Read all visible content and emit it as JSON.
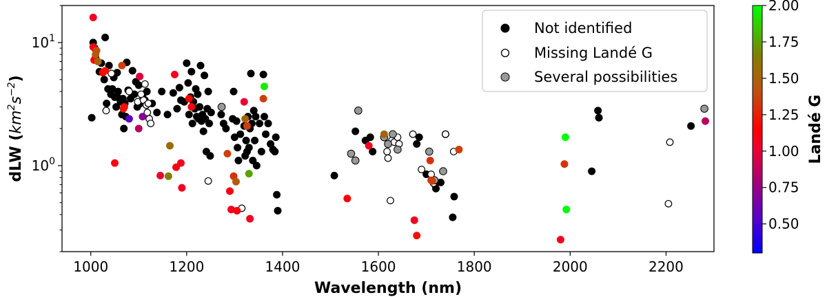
{
  "chart_data": {
    "type": "scatter",
    "title": "",
    "xlabel": "Wavelength (nm)",
    "ylabel": "dLW (km²s⁻²)",
    "ylabel_parts": {
      "main": "dLW (",
      "km": "km",
      "exp2": "2",
      "s": "s",
      "expm2": "−2",
      "close": ")"
    },
    "xscale": "linear",
    "yscale": "log",
    "xlim": [
      940,
      2300
    ],
    "ylim": [
      0.2,
      20
    ],
    "x_ticks": [
      1000,
      1200,
      1400,
      1600,
      1800,
      2000,
      2200
    ],
    "x_tick_labels": [
      "1000",
      "1200",
      "1400",
      "1600",
      "1800",
      "2000",
      "2200"
    ],
    "y_ticks": [
      1,
      10
    ],
    "y_tick_labels": [
      {
        "base": "10",
        "exp": "0"
      },
      {
        "base": "10",
        "exp": "1"
      }
    ],
    "legend": {
      "placement": "top-right",
      "entries": [
        {
          "label": "Not identified",
          "marker": "filled-black"
        },
        {
          "label": "Missing Landé G",
          "marker": "hollow"
        },
        {
          "label": "Several possibilities",
          "marker": "filled-gray"
        }
      ]
    },
    "colorbar": {
      "label": "Landé G",
      "range": [
        0.3,
        2.0
      ],
      "ticks": [
        0.5,
        0.75,
        1.0,
        1.25,
        1.5,
        1.75,
        2.0
      ],
      "tick_labels": [
        "0.50",
        "0.75",
        "1.00",
        "1.25",
        "1.50",
        "1.75",
        "2.00"
      ]
    },
    "series": [
      {
        "name": "Not identified",
        "style": "black",
        "points": [
          [
            1002,
            2.45
          ],
          [
            1005,
            10.0
          ],
          [
            1008,
            9.0
          ],
          [
            1010,
            7.5
          ],
          [
            1018,
            5.8
          ],
          [
            1022,
            6.8
          ],
          [
            1028,
            5.0
          ],
          [
            1030,
            11.0
          ],
          [
            1033,
            3.2
          ],
          [
            1036,
            4.2
          ],
          [
            1038,
            6.5
          ],
          [
            1042,
            3.8
          ],
          [
            1045,
            4.2
          ],
          [
            1048,
            5.2
          ],
          [
            1050,
            3.6
          ],
          [
            1053,
            3.0
          ],
          [
            1055,
            5.7
          ],
          [
            1057,
            4.0
          ],
          [
            1060,
            3.5
          ],
          [
            1062,
            3.3
          ],
          [
            1065,
            2.6
          ],
          [
            1067,
            3.5
          ],
          [
            1069,
            2.0
          ],
          [
            1071,
            3.2
          ],
          [
            1073,
            2.5
          ],
          [
            1075,
            6.9
          ],
          [
            1078,
            4.1
          ],
          [
            1083,
            3.5
          ],
          [
            1087,
            5.9
          ],
          [
            1091,
            3.8
          ],
          [
            1094,
            4.8
          ],
          [
            1097,
            3.0
          ],
          [
            1100,
            4.5
          ],
          [
            1103,
            3.2
          ],
          [
            1108,
            3.7
          ],
          [
            1113,
            3.4
          ],
          [
            1117,
            4.0
          ],
          [
            1128,
            3.2
          ],
          [
            1138,
            2.7
          ],
          [
            1148,
            4.0
          ],
          [
            1160,
            2.6
          ],
          [
            1172,
            3.9
          ],
          [
            1180,
            2.9
          ],
          [
            1185,
            4.3
          ],
          [
            1188,
            3.4
          ],
          [
            1195,
            3.3
          ],
          [
            1200,
            6.8
          ],
          [
            1203,
            4.7
          ],
          [
            1205,
            2.6
          ],
          [
            1208,
            3.6
          ],
          [
            1210,
            5.8
          ],
          [
            1212,
            2.2
          ],
          [
            1214,
            3.3
          ],
          [
            1217,
            2.9
          ],
          [
            1219,
            4.2
          ],
          [
            1221,
            2.5
          ],
          [
            1223,
            3.8
          ],
          [
            1225,
            2.4
          ],
          [
            1227,
            3.0
          ],
          [
            1229,
            6.5
          ],
          [
            1231,
            2.3
          ],
          [
            1233,
            2.6
          ],
          [
            1235,
            1.9
          ],
          [
            1237,
            5.4
          ],
          [
            1239,
            2.4
          ],
          [
            1241,
            1.3
          ],
          [
            1243,
            2.9
          ],
          [
            1245,
            4.0
          ],
          [
            1247,
            2.2
          ],
          [
            1249,
            1.2
          ],
          [
            1251,
            2.7
          ],
          [
            1272,
            2.6
          ],
          [
            1277,
            2.2
          ],
          [
            1282,
            2.0
          ],
          [
            1296,
            2.4
          ],
          [
            1298,
            4.0
          ],
          [
            1300,
            1.7
          ],
          [
            1304,
            2.3
          ],
          [
            1306,
            1.4
          ],
          [
            1308,
            1.1
          ],
          [
            1312,
            1.8
          ],
          [
            1320,
            2.1
          ],
          [
            1322,
            1.2
          ],
          [
            1324,
            1.6
          ],
          [
            1326,
            1.3
          ],
          [
            1328,
            2.5
          ],
          [
            1330,
            1.4
          ],
          [
            1332,
            2.0
          ],
          [
            1334,
            5.6
          ],
          [
            1336,
            2.2
          ],
          [
            1338,
            1.1
          ],
          [
            1340,
            2.8
          ],
          [
            1342,
            1.6
          ],
          [
            1344,
            2.5
          ],
          [
            1346,
            1.0
          ],
          [
            1352,
            2.2
          ],
          [
            1356,
            1.3
          ],
          [
            1360,
            5.5
          ],
          [
            1362,
            2.5
          ],
          [
            1365,
            1.8
          ],
          [
            1370,
            2.2
          ],
          [
            1375,
            1.5
          ],
          [
            1380,
            1.35
          ],
          [
            1384,
            1.3
          ],
          [
            1386,
            1.7
          ],
          [
            1388,
            0.58
          ],
          [
            1390,
            0.43
          ],
          [
            1508,
            0.83
          ],
          [
            1552,
            1.9
          ],
          [
            1573,
            1.6
          ],
          [
            1583,
            1.7
          ],
          [
            1588,
            1.3
          ],
          [
            1680,
            1.5
          ],
          [
            1685,
            1.7
          ],
          [
            1700,
            0.85
          ],
          [
            1718,
            0.7
          ],
          [
            1720,
            0.65
          ],
          [
            1730,
            0.73
          ],
          [
            1740,
            1.8
          ],
          [
            1755,
            0.38
          ],
          [
            1758,
            0.56
          ],
          [
            2045,
            0.9
          ],
          [
            2058,
            2.8
          ],
          [
            2060,
            2.45
          ],
          [
            2252,
            2.1
          ]
        ]
      },
      {
        "name": "Missing Landé G",
        "style": "hollow",
        "points": [
          [
            1032,
            2.8
          ],
          [
            1043,
            5.6
          ],
          [
            1080,
            4.0
          ],
          [
            1098,
            3.3
          ],
          [
            1105,
            3.8
          ],
          [
            1110,
            3.4
          ],
          [
            1113,
            4.6
          ],
          [
            1116,
            3.1
          ],
          [
            1118,
            2.7
          ],
          [
            1120,
            3.2
          ],
          [
            1122,
            2.4
          ],
          [
            1125,
            2.2
          ],
          [
            1245,
            0.75
          ],
          [
            1315,
            0.45
          ],
          [
            1618,
            1.3
          ],
          [
            1620,
            1.15
          ],
          [
            1625,
            0.52
          ],
          [
            1628,
            1.6
          ],
          [
            1633,
            1.55
          ],
          [
            1640,
            1.7
          ],
          [
            1643,
            1.5
          ],
          [
            1672,
            1.8
          ],
          [
            1690,
            0.93
          ],
          [
            1710,
            0.85
          ],
          [
            1715,
            0.72
          ],
          [
            1735,
            0.9
          ],
          [
            1740,
            1.8
          ],
          [
            1757,
            1.3
          ],
          [
            2205,
            0.49
          ],
          [
            2208,
            1.55
          ]
        ]
      },
      {
        "name": "Several possibilities",
        "style": "gray",
        "points": [
          [
            1273,
            3.0
          ],
          [
            1543,
            1.25
          ],
          [
            1552,
            1.1
          ],
          [
            1558,
            2.8
          ],
          [
            1612,
            1.7
          ],
          [
            1620,
            1.5
          ],
          [
            1630,
            1.8
          ],
          [
            1640,
            1.35
          ],
          [
            1706,
            1.3
          ],
          [
            1717,
            0.76
          ],
          [
            1735,
            0.9
          ],
          [
            2280,
            2.9
          ]
        ]
      },
      {
        "name": "Landé G colored",
        "style": "colormap",
        "points": [
          [
            1005,
            16.0,
            1.05
          ],
          [
            1005,
            9.2,
            1.1
          ],
          [
            1007,
            7.2,
            1.15
          ],
          [
            1010,
            8.0,
            1.45
          ],
          [
            1012,
            8.6,
            1.4
          ],
          [
            1015,
            7.0,
            1.5
          ],
          [
            1025,
            5.7,
            1.15
          ],
          [
            1030,
            5.9,
            1.2
          ],
          [
            1050,
            1.05,
            1.1
          ],
          [
            1065,
            6.5,
            1.35
          ],
          [
            1068,
            2.9,
            1.2
          ],
          [
            1070,
            3.0,
            1.2
          ],
          [
            1080,
            2.4,
            0.55
          ],
          [
            1100,
            2.0,
            0.85
          ],
          [
            1102,
            5.3,
            0.95
          ],
          [
            1108,
            2.5,
            0.7
          ],
          [
            1145,
            0.83,
            1.0
          ],
          [
            1162,
            0.82,
            1.65
          ],
          [
            1165,
            1.45,
            1.55
          ],
          [
            1175,
            5.5,
            1.05
          ],
          [
            1178,
            0.97,
            1.1
          ],
          [
            1188,
            1.05,
            1.05
          ],
          [
            1190,
            0.66,
            1.05
          ],
          [
            1205,
            3.5,
            1.15
          ],
          [
            1210,
            3.0,
            1.1
          ],
          [
            1285,
            1.25,
            1.35
          ],
          [
            1290,
            0.62,
            1.1
          ],
          [
            1293,
            0.44,
            1.05
          ],
          [
            1298,
            0.82,
            1.3
          ],
          [
            1303,
            0.74,
            1.45
          ],
          [
            1305,
            0.43,
            1.1
          ],
          [
            1320,
            3.3,
            1.0
          ],
          [
            1322,
            2.4,
            1.5
          ],
          [
            1326,
            2.1,
            1.35
          ],
          [
            1330,
            0.86,
            1.75
          ],
          [
            1332,
            0.37,
            1.05
          ],
          [
            1360,
            3.5,
            1.35
          ],
          [
            1362,
            4.4,
            1.95
          ],
          [
            1535,
            0.54,
            1.15
          ],
          [
            1580,
            1.45,
            1.05
          ],
          [
            1612,
            1.8,
            1.5
          ],
          [
            1675,
            0.36,
            1.05
          ],
          [
            1680,
            0.27,
            1.2
          ],
          [
            1708,
            1.1,
            1.3
          ],
          [
            1710,
            0.76,
            1.3
          ],
          [
            1712,
            0.75,
            1.35
          ],
          [
            1768,
            1.35,
            1.35
          ],
          [
            1980,
            0.25,
            1.05
          ],
          [
            1988,
            1.03,
            1.3
          ],
          [
            1990,
            1.7,
            2.0
          ],
          [
            1992,
            0.44,
            2.0
          ],
          [
            2282,
            2.3,
            0.85
          ]
        ]
      }
    ]
  }
}
